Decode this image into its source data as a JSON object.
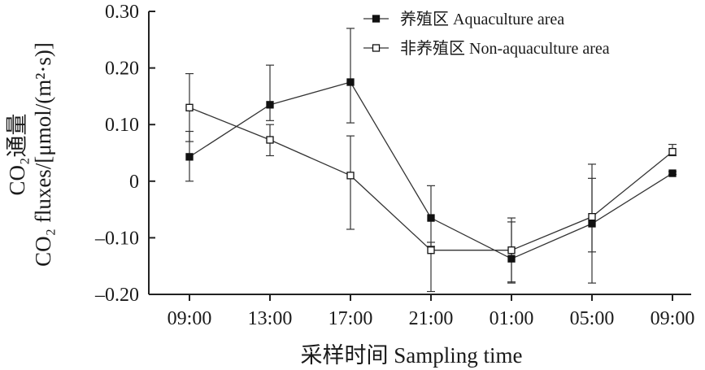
{
  "chart_data": {
    "type": "line",
    "xlabel": "采样时间 Sampling time",
    "ylabel_line1": "CO₂通量",
    "ylabel_line2": "CO₂ fluxes/[μmol/(m²·s)]",
    "categories": [
      "09:00",
      "13:00",
      "17:00",
      "21:00",
      "01:00",
      "05:00",
      "09:00"
    ],
    "ylim": [
      -0.2,
      0.3
    ],
    "yticks": [
      0.3,
      0.2,
      0.1,
      0,
      -0.1,
      -0.2
    ],
    "ytick_labels": [
      "0.30",
      "0.20",
      "0.10",
      "0",
      "–0.10",
      "–0.20"
    ],
    "grid": false,
    "legend_position": "top-right",
    "series": [
      {
        "name": "养殖区 Aquaculture area",
        "marker": "filled-square",
        "values": [
          0.043,
          0.135,
          0.175,
          -0.065,
          -0.137,
          -0.075,
          0.014
        ],
        "err_low": [
          0.0,
          0.107,
          0.103,
          -0.115,
          -0.18,
          -0.125,
          0.012
        ],
        "err_high": [
          0.088,
          0.205,
          0.27,
          -0.008,
          -0.065,
          0.03,
          0.017
        ]
      },
      {
        "name": "非养殖区 Non-aquaculture area",
        "marker": "open-square",
        "values": [
          0.13,
          0.073,
          0.01,
          -0.122,
          -0.122,
          -0.063,
          0.052
        ],
        "err_low": [
          0.07,
          0.045,
          -0.085,
          -0.195,
          -0.178,
          -0.18,
          0.045
        ],
        "err_high": [
          0.19,
          0.1,
          0.08,
          -0.108,
          -0.072,
          0.005,
          0.065
        ]
      }
    ]
  }
}
